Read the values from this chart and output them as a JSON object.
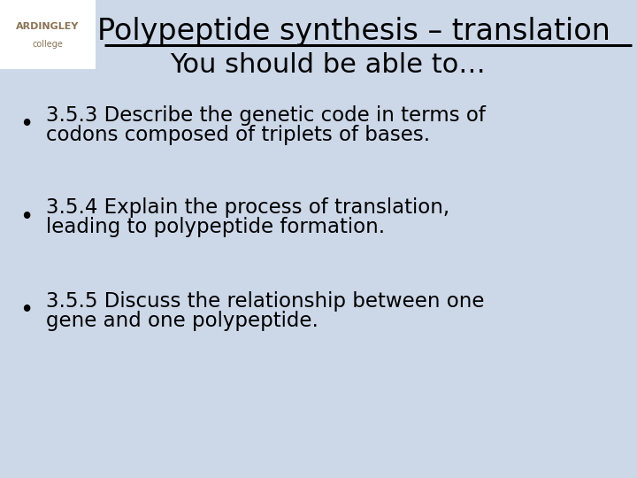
{
  "background_color": "#ccd7e8",
  "logo_area_color": "#ffffff",
  "title_line1": "Polypeptide synthesis – translation",
  "title_line2": "You should be able to…",
  "title_color": "#000000",
  "bullet_points": [
    "3.5.3 Describe the genetic code in terms of\ncodons composed of triplets of bases.",
    "3.5.4 Explain the process of translation,\nleading to polypeptide formation.",
    "3.5.5 Discuss the relationship between one\ngene and one polypeptide."
  ],
  "bullet_color": "#000000",
  "bullet_fontsize": 16.5,
  "title_fontsize1": 24,
  "title_fontsize2": 22,
  "logo_text_top": "ARDINGLEY",
  "logo_text_bot": "college",
  "logo_text_color": "#8B7355"
}
